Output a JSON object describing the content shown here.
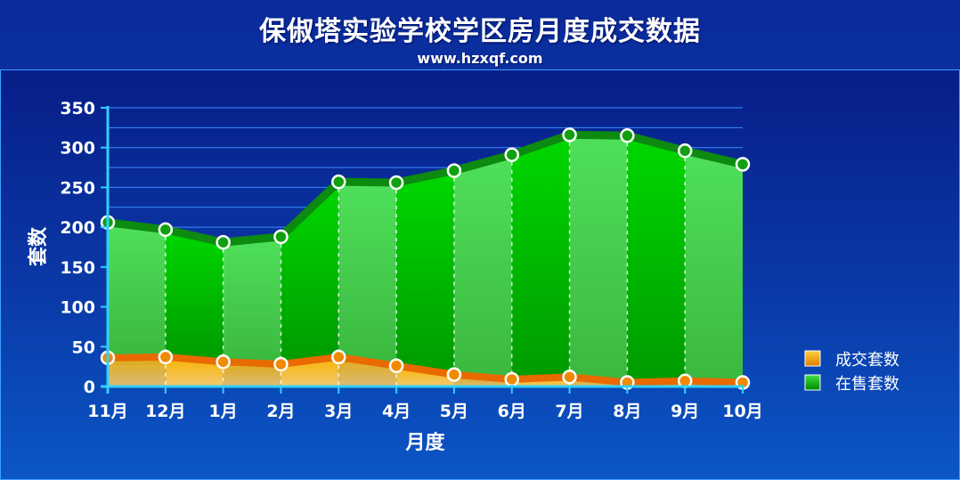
{
  "header": {
    "title": "保俶塔实验学校学区房月度成交数据",
    "subtitle": "www.hzxqf.com"
  },
  "chart_data": {
    "type": "area",
    "title": "保俶塔实验学校学区房月度成交数据",
    "xlabel": "月度",
    "ylabel": "套数",
    "ylim": [
      0,
      350
    ],
    "yticks": [
      0,
      50,
      100,
      150,
      200,
      250,
      300,
      350
    ],
    "grid": true,
    "legend_position": "right",
    "categories": [
      "11月",
      "12月",
      "1月",
      "2月",
      "3月",
      "4月",
      "5月",
      "6月",
      "7月",
      "8月",
      "9月",
      "10月"
    ],
    "series": [
      {
        "name": "成交套数",
        "color": "#f59a00",
        "values": [
          36,
          37,
          31,
          28,
          37,
          26,
          15,
          9,
          12,
          5,
          7,
          5
        ]
      },
      {
        "name": "在售套数",
        "color": "#00c000",
        "values": [
          206,
          197,
          181,
          188,
          257,
          256,
          271,
          291,
          316,
          315,
          296,
          279
        ]
      }
    ]
  }
}
